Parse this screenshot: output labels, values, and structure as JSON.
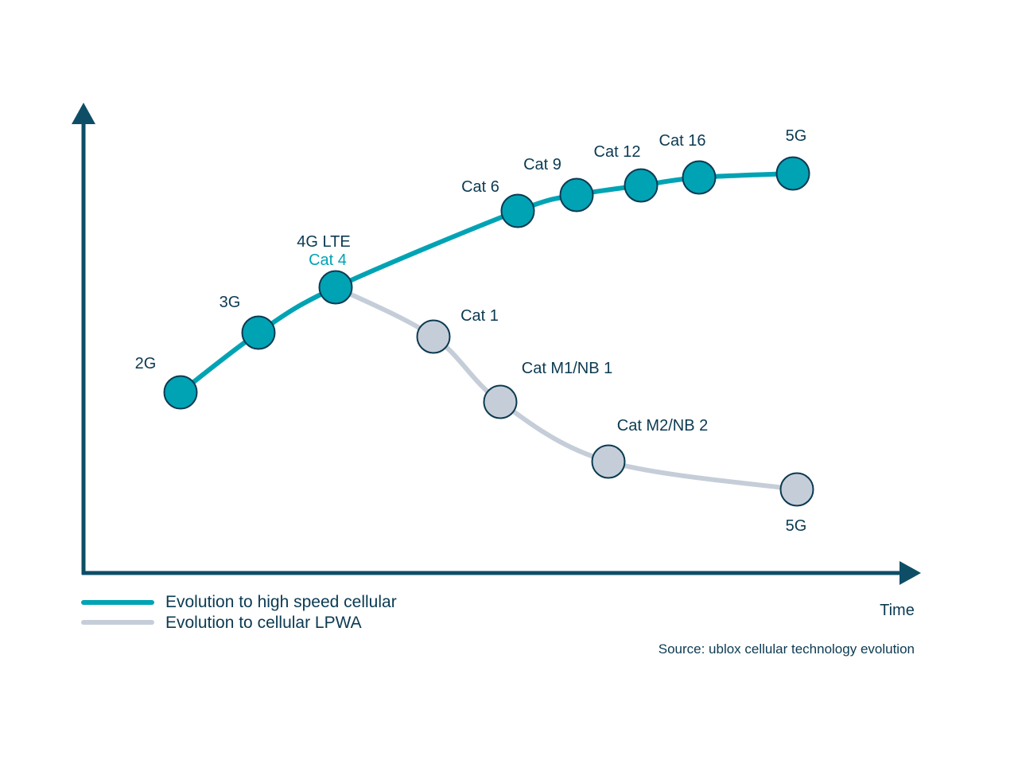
{
  "colors": {
    "high_speed": "#00a3b4",
    "lpwa": "#c5ced8",
    "axis": "#0d4e66",
    "text": "#0b3a52",
    "node_stroke": "#0b3a52"
  },
  "high_speed": {
    "legend": "Evolution to high speed cellular",
    "nodes": [
      {
        "label": "2G"
      },
      {
        "label": "3G"
      },
      {
        "label": "4G LTE",
        "sublabel": "Cat 4"
      },
      {
        "label": "Cat 6"
      },
      {
        "label": "Cat 9"
      },
      {
        "label": "Cat 12"
      },
      {
        "label": "Cat 16"
      },
      {
        "label": "5G"
      }
    ]
  },
  "lpwa": {
    "legend": "Evolution to cellular LPWA",
    "nodes": [
      {
        "label": "Cat 1"
      },
      {
        "label": "Cat M1/NB 1"
      },
      {
        "label": "Cat M2/NB 2"
      },
      {
        "label": "5G"
      }
    ]
  },
  "x_axis_label": "Time",
  "source": "Source: ublox cellular technology evolution"
}
